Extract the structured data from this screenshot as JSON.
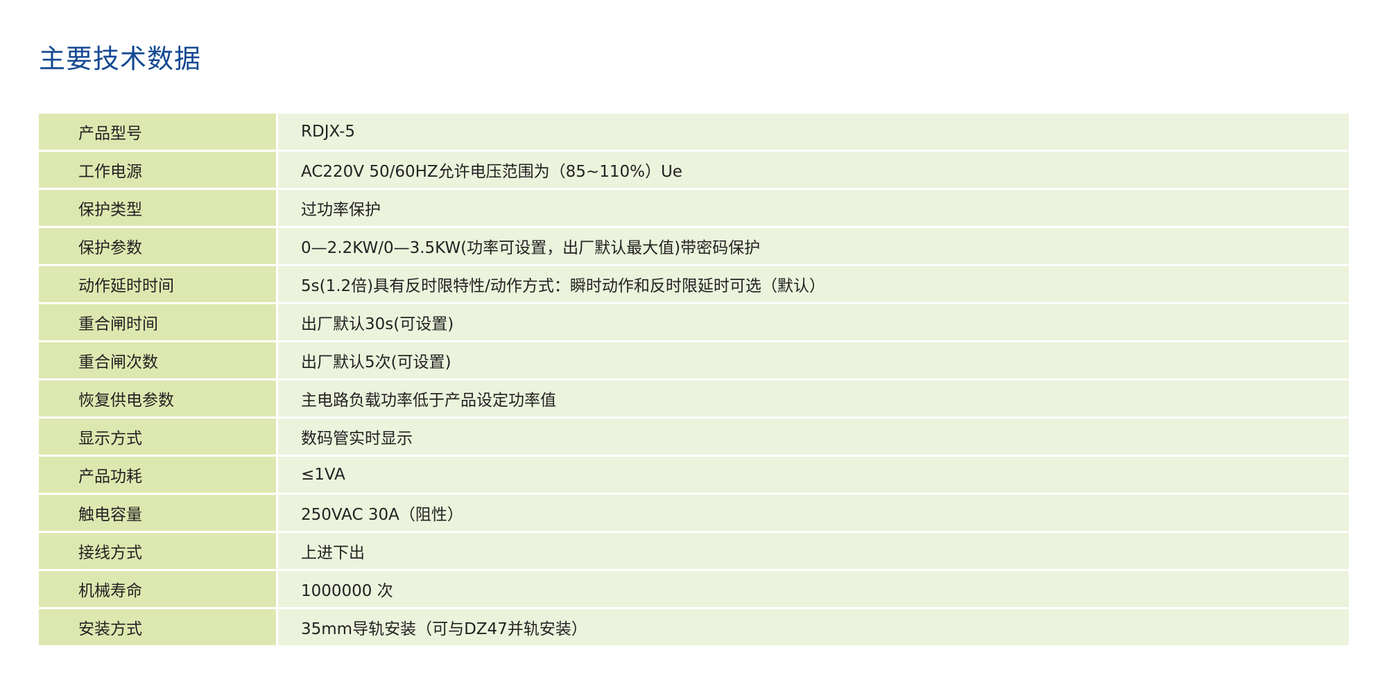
{
  "title": "主要技术数据",
  "rows": [
    {
      "label": "产品型号",
      "value": "RDJX-5"
    },
    {
      "label": "工作电源",
      "value": "AC220V  50/60HZ允许电压范围为（85~110%）Ue"
    },
    {
      "label": "保护类型",
      "value": "过功率保护"
    },
    {
      "label": "保护参数",
      "value": "0—2.2KW/0—3.5KW(功率可设置，出厂默认最大值)带密码保护"
    },
    {
      "label": "动作延时时间",
      "value": "5s(1.2倍)具有反时限特性/动作方式：瞬时动作和反时限延时可选（默认）"
    },
    {
      "label": "重合闸时间",
      "value": "出厂默认30s(可设置)"
    },
    {
      "label": "重合闸次数",
      "value": "出厂默认5次(可设置)"
    },
    {
      "label": "恢复供电参数",
      "value": "主电路负载功率低于产品设定功率值"
    },
    {
      "label": "显示方式",
      "value": "数码管实时显示"
    },
    {
      "label": "产品功耗",
      "value": "≤1VA"
    },
    {
      "label": "触电容量",
      "value": "250VAC  30A（阻性）"
    },
    {
      "label": "接线方式",
      "value": "上进下出"
    },
    {
      "label": "机械寿命",
      "value": "1000000 次"
    },
    {
      "label": "安装方式",
      "value": "35mm导轨安装（可与DZ47并轨安装）"
    }
  ],
  "colors": {
    "title": "#154a92",
    "label_bg": "#dde8b0",
    "value_bg": "#ecf3dc"
  }
}
